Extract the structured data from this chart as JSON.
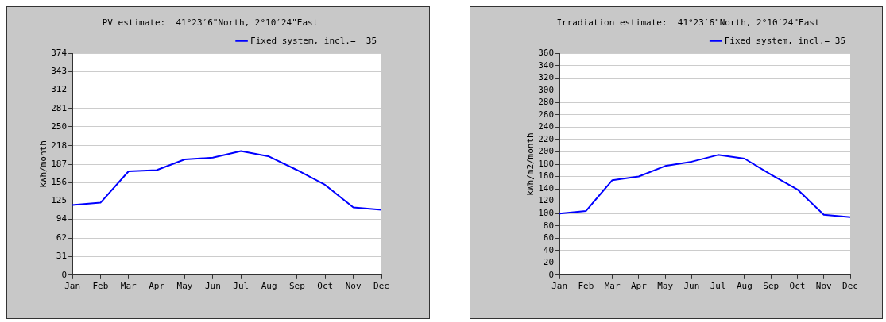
{
  "chart_data": [
    {
      "type": "line",
      "title": "PV estimate:  41°23′6\"North, 2°10′24\"East",
      "ylabel": "kWh/month",
      "categories": [
        "Jan",
        "Feb",
        "Mar",
        "Apr",
        "May",
        "Jun",
        "Jul",
        "Aug",
        "Sep",
        "Oct",
        "Nov",
        "Dec"
      ],
      "series": [
        {
          "name": "Fixed system, incl.=  35",
          "color": "#0000ff",
          "values": [
            118,
            122,
            175,
            177,
            195,
            198,
            209,
            200,
            177,
            152,
            114,
            110
          ]
        }
      ],
      "ylim": [
        0,
        374
      ],
      "yticks": [
        0,
        31,
        62,
        94,
        125,
        156,
        187,
        218,
        250,
        281,
        312,
        343,
        374
      ],
      "grid": "y",
      "legend": "top right",
      "marker": "none"
    },
    {
      "type": "line",
      "title": "Irradiation estimate:  41°23′6\"North, 2°10′24\"East",
      "ylabel": "kWh/m2/month",
      "categories": [
        "Jan",
        "Feb",
        "Mar",
        "Apr",
        "May",
        "Jun",
        "Jul",
        "Aug",
        "Sep",
        "Oct",
        "Nov",
        "Dec"
      ],
      "series": [
        {
          "name": "Fixed system, incl.= 35",
          "color": "#0000ff",
          "values": [
            100,
            104,
            154,
            160,
            177,
            184,
            195,
            189,
            163,
            139,
            98,
            94
          ]
        }
      ],
      "ylim": [
        0,
        360
      ],
      "yticks": [
        0,
        20,
        40,
        60,
        80,
        100,
        120,
        140,
        160,
        180,
        200,
        220,
        240,
        260,
        280,
        300,
        320,
        340,
        360
      ],
      "grid": "y",
      "legend": "top right",
      "marker": "none"
    }
  ]
}
